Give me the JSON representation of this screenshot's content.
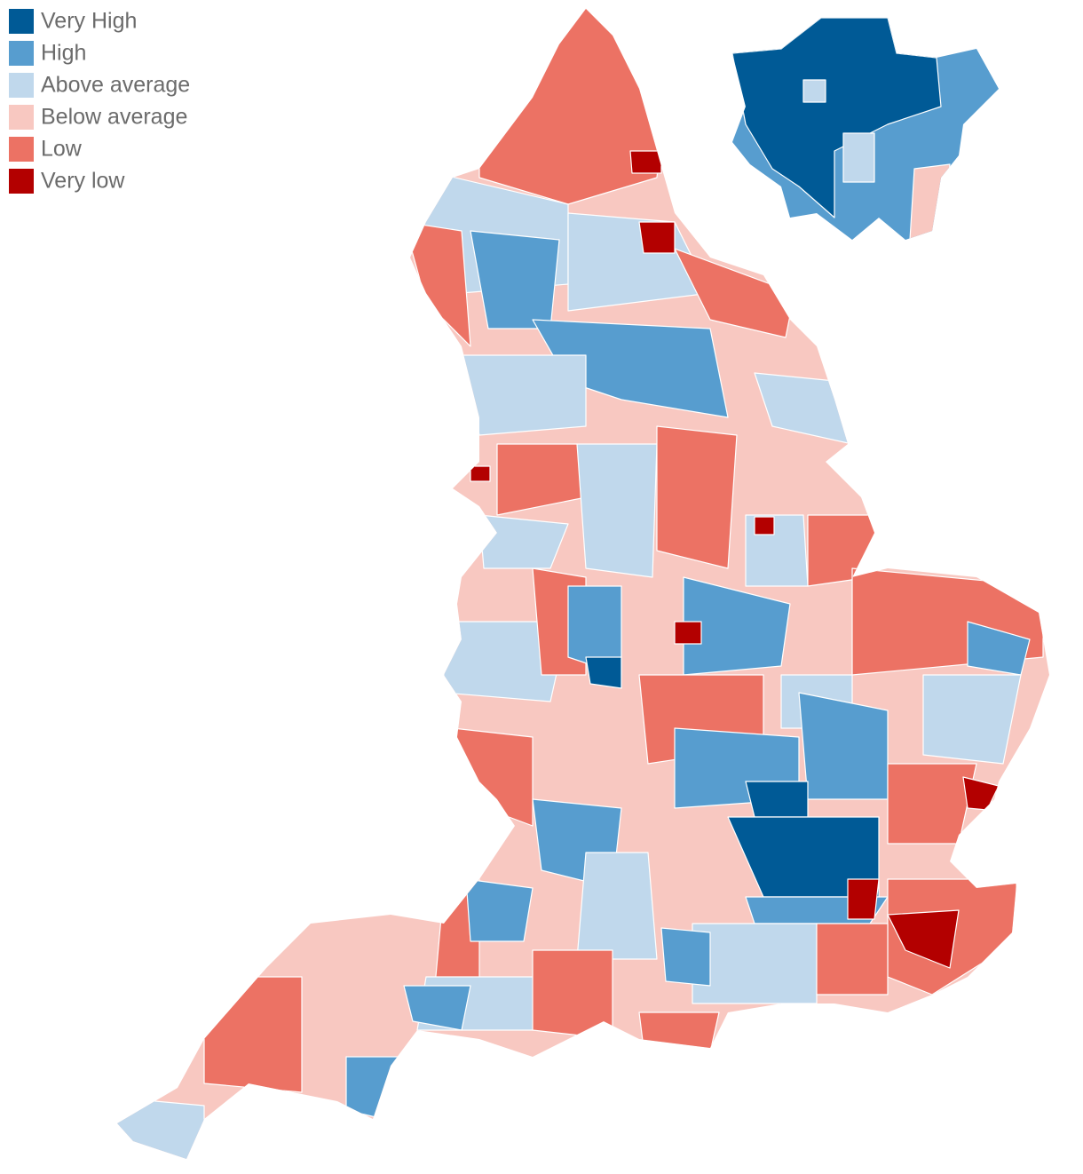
{
  "legend": {
    "items": [
      {
        "label": "Very High",
        "color": "#005a96"
      },
      {
        "label": "High",
        "color": "#579dcf"
      },
      {
        "label": "Above average",
        "color": "#c0d8ec"
      },
      {
        "label": "Below average",
        "color": "#f8c8c1"
      },
      {
        "label": "Low",
        "color": "#ec7264"
      },
      {
        "label": "Very low",
        "color": "#b30000"
      }
    ]
  }
}
